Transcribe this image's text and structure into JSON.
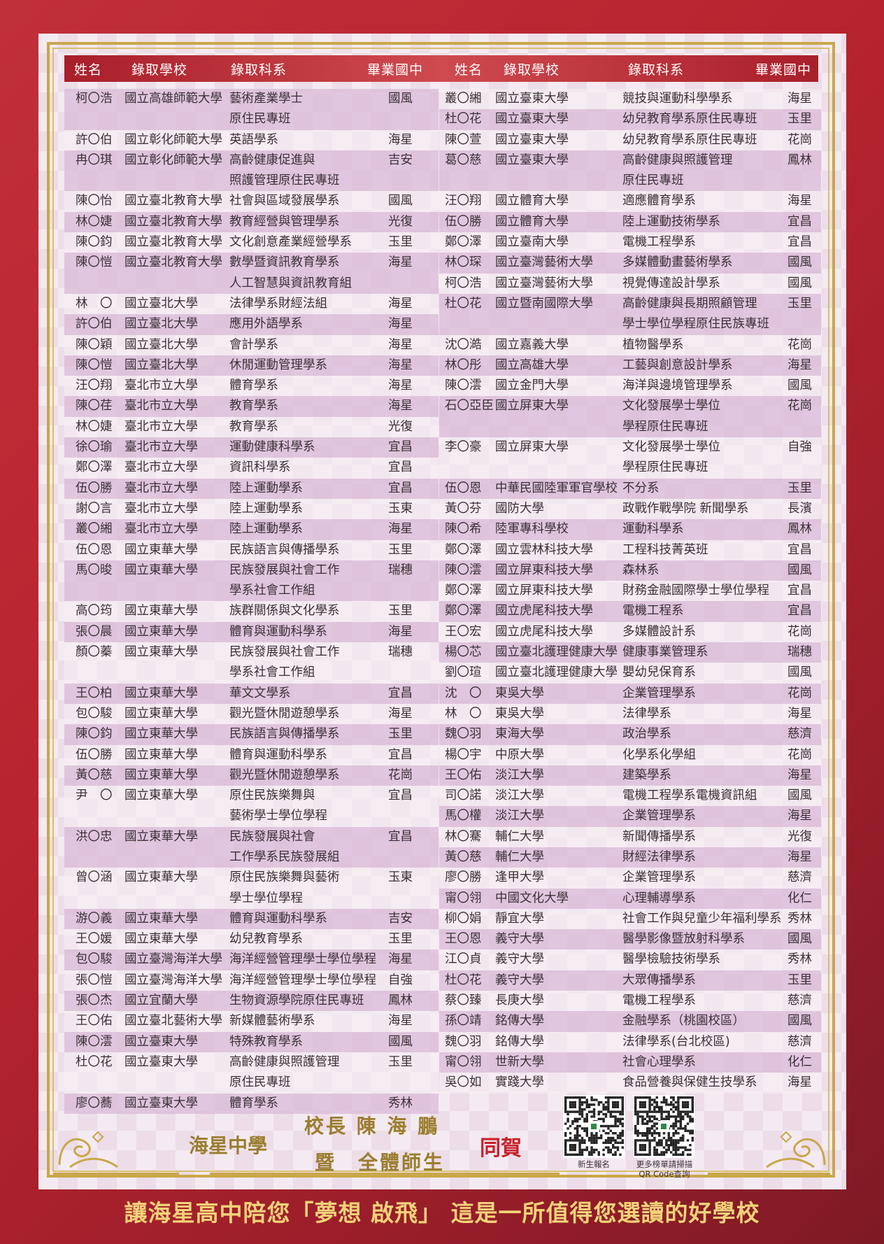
{
  "header": {
    "name": "姓名",
    "school": "錄取學校",
    "dept": "錄取科系",
    "junior_high": "畢業國中"
  },
  "left_rows": [
    {
      "name": "柯〇浩",
      "school": "國立高雄師範大學",
      "dept": [
        "藝術產業學士",
        "原住民專班"
      ],
      "jh": "國風"
    },
    {
      "name": "許〇伯",
      "school": "國立彰化師範大學",
      "dept": [
        "英語學系"
      ],
      "jh": "海星"
    },
    {
      "name": "冉〇琪",
      "school": "國立彰化師範大學",
      "dept": [
        "高齡健康促進與",
        "照護管理原住民專班"
      ],
      "jh": "吉安"
    },
    {
      "name": "陳〇怡",
      "school": "國立臺北教育大學",
      "dept": [
        "社會與區域發展學系"
      ],
      "jh": "國風"
    },
    {
      "name": "林〇婕",
      "school": "國立臺北教育大學",
      "dept": [
        "教育經營與管理學系"
      ],
      "jh": "光復"
    },
    {
      "name": "陳〇鈞",
      "school": "國立臺北教育大學",
      "dept": [
        "文化創意產業經營學系"
      ],
      "jh": "玉里"
    },
    {
      "name": "陳〇愷",
      "school": "國立臺北教育大學",
      "dept": [
        "數學暨資訊教育學系",
        "人工智慧與資訊教育組"
      ],
      "jh": "海星"
    },
    {
      "name": "林　〇",
      "school": "國立臺北大學",
      "dept": [
        "法律學系財經法組"
      ],
      "jh": "海星"
    },
    {
      "name": "許〇伯",
      "school": "國立臺北大學",
      "dept": [
        "應用外語學系"
      ],
      "jh": "海星"
    },
    {
      "name": "陳〇穎",
      "school": "國立臺北大學",
      "dept": [
        "會計學系"
      ],
      "jh": "海星"
    },
    {
      "name": "陳〇愷",
      "school": "國立臺北大學",
      "dept": [
        "休閒運動管理學系"
      ],
      "jh": "海星"
    },
    {
      "name": "汪〇翔",
      "school": "臺北市立大學",
      "dept": [
        "體育學系"
      ],
      "jh": "海星"
    },
    {
      "name": "陳〇荏",
      "school": "臺北市立大學",
      "dept": [
        "教育學系"
      ],
      "jh": "海星"
    },
    {
      "name": "林〇婕",
      "school": "臺北市立大學",
      "dept": [
        "教育學系"
      ],
      "jh": "光復"
    },
    {
      "name": "徐〇瑜",
      "school": "臺北市立大學",
      "dept": [
        "運動健康科學系"
      ],
      "jh": "宜昌"
    },
    {
      "name": "鄭〇澤",
      "school": "臺北市立大學",
      "dept": [
        "資訊科學系"
      ],
      "jh": "宜昌"
    },
    {
      "name": "伍〇勝",
      "school": "臺北市立大學",
      "dept": [
        "陸上運動學系"
      ],
      "jh": "宜昌"
    },
    {
      "name": "謝〇言",
      "school": "臺北市立大學",
      "dept": [
        "陸上運動學系"
      ],
      "jh": "玉東"
    },
    {
      "name": "叢〇緗",
      "school": "臺北市立大學",
      "dept": [
        "陸上運動學系"
      ],
      "jh": "海星"
    },
    {
      "name": "伍〇恩",
      "school": "國立東華大學",
      "dept": [
        "民族語言與傳播學系"
      ],
      "jh": "玉里"
    },
    {
      "name": "馬〇晙",
      "school": "國立東華大學",
      "dept": [
        "民族發展與社會工作",
        "學系社會工作組"
      ],
      "jh": "瑞穗"
    },
    {
      "name": "高〇筠",
      "school": "國立東華大學",
      "dept": [
        "族群關係與文化學系"
      ],
      "jh": "玉里"
    },
    {
      "name": "張〇晨",
      "school": "國立東華大學",
      "dept": [
        "體育與運動科學系"
      ],
      "jh": "海星"
    },
    {
      "name": "顏〇蓁",
      "school": "國立東華大學",
      "dept": [
        "民族發展與社會工作",
        "學系社會工作組"
      ],
      "jh": "瑞穗"
    },
    {
      "name": "王〇柏",
      "school": "國立東華大學",
      "dept": [
        "華文文學系"
      ],
      "jh": "宜昌"
    },
    {
      "name": "包〇駿",
      "school": "國立東華大學",
      "dept": [
        "觀光暨休閒遊憩學系"
      ],
      "jh": "海星"
    },
    {
      "name": "陳〇鈞",
      "school": "國立東華大學",
      "dept": [
        "民族語言與傳播學系"
      ],
      "jh": "玉里"
    },
    {
      "name": "伍〇勝",
      "school": "國立東華大學",
      "dept": [
        "體育與運動科學系"
      ],
      "jh": "宜昌"
    },
    {
      "name": "黃〇慈",
      "school": "國立東華大學",
      "dept": [
        "觀光暨休閒遊憩學系"
      ],
      "jh": "花崗"
    },
    {
      "name": "尹　〇",
      "school": "國立東華大學",
      "dept": [
        "原住民族樂舞與",
        "藝術學士學位學程"
      ],
      "jh": "宜昌"
    },
    {
      "name": "洪〇忠",
      "school": "國立東華大學",
      "dept": [
        "民族發展與社會",
        "工作學系民族發展組"
      ],
      "jh": "宜昌"
    },
    {
      "name": "曾〇涵",
      "school": "國立東華大學",
      "dept": [
        "原住民族樂舞與藝術",
        "學士學位學程"
      ],
      "jh": "玉東"
    },
    {
      "name": "游〇義",
      "school": "國立東華大學",
      "dept": [
        "體育與運動科學系"
      ],
      "jh": "吉安"
    },
    {
      "name": "王〇媛",
      "school": "國立東華大學",
      "dept": [
        "幼兒教育學系"
      ],
      "jh": "玉里"
    },
    {
      "name": "包〇駿",
      "school": "國立臺灣海洋大學",
      "dept": [
        "海洋經營管理學士學位學程"
      ],
      "jh": "海星"
    },
    {
      "name": "張〇愷",
      "school": "國立臺灣海洋大學",
      "dept": [
        "海洋經營管理學士學位學程"
      ],
      "jh": "自強"
    },
    {
      "name": "張〇杰",
      "school": "國立宜蘭大學",
      "dept": [
        "生物資源學院原住民專班"
      ],
      "jh": "鳳林"
    },
    {
      "name": "王〇佑",
      "school": "國立臺北藝術大學",
      "dept": [
        "新媒體藝術學系"
      ],
      "jh": "海星"
    },
    {
      "name": "陳〇澐",
      "school": "國立臺東大學",
      "dept": [
        "特殊教育學系"
      ],
      "jh": "國風"
    },
    {
      "name": "杜〇花",
      "school": "國立臺東大學",
      "dept": [
        "高齡健康與照護管理",
        "原住民專班"
      ],
      "jh": "玉里"
    },
    {
      "name": "廖〇蕎",
      "school": "國立臺東大學",
      "dept": [
        "體育學系"
      ],
      "jh": "秀林"
    }
  ],
  "right_rows": [
    {
      "name": "叢〇緗",
      "school": "國立臺東大學",
      "dept": [
        "競技與運動科學學系"
      ],
      "jh": "海星"
    },
    {
      "name": "杜〇花",
      "school": "國立臺東大學",
      "dept": [
        "幼兒教育學系原住民專班"
      ],
      "jh": "玉里"
    },
    {
      "name": "陳〇萱",
      "school": "國立臺東大學",
      "dept": [
        "幼兒教育學系原住民專班"
      ],
      "jh": "花崗"
    },
    {
      "name": "葛〇慈",
      "school": "國立臺東大學",
      "dept": [
        "高齡健康與照護管理",
        "原住民專班"
      ],
      "jh": "鳳林"
    },
    {
      "name": "汪〇翔",
      "school": "國立體育大學",
      "dept": [
        "適應體育學系"
      ],
      "jh": "海星"
    },
    {
      "name": "伍〇勝",
      "school": "國立體育大學",
      "dept": [
        "陸上運動技術學系"
      ],
      "jh": "宜昌"
    },
    {
      "name": "鄭〇澤",
      "school": "國立臺南大學",
      "dept": [
        "電機工程學系"
      ],
      "jh": "宜昌"
    },
    {
      "name": "林〇琛",
      "school": "國立臺灣藝術大學",
      "dept": [
        "多媒體動畫藝術學系"
      ],
      "jh": "國風"
    },
    {
      "name": "柯〇浩",
      "school": "國立臺灣藝術大學",
      "dept": [
        "視覺傳達設計學系"
      ],
      "jh": "國風"
    },
    {
      "name": "杜〇花",
      "school": "國立暨南國際大學",
      "dept": [
        "高齡健康與長期照顧管理",
        "學士學位學程原住民族專班"
      ],
      "jh": "玉里"
    },
    {
      "name": "沈〇澔",
      "school": "國立嘉義大學",
      "dept": [
        "植物醫學系"
      ],
      "jh": "花崗"
    },
    {
      "name": "林〇彤",
      "school": "國立高雄大學",
      "dept": [
        "工藝與創意設計學系"
      ],
      "jh": "海星"
    },
    {
      "name": "陳〇澐",
      "school": "國立金門大學",
      "dept": [
        "海洋與邊境管理學系"
      ],
      "jh": "國風"
    },
    {
      "name": "石〇亞臣",
      "school": "國立屏東大學",
      "dept": [
        "文化發展學士學位",
        "學程原住民專班"
      ],
      "jh": "花崗"
    },
    {
      "name": "李〇豪",
      "school": "國立屏東大學",
      "dept": [
        "文化發展學士學位",
        "學程原住民專班"
      ],
      "jh": "自強"
    },
    {
      "name": "伍〇恩",
      "school": "中華民國陸軍軍官學校",
      "dept": [
        "不分系"
      ],
      "jh": "玉里"
    },
    {
      "name": "黃〇芬",
      "school": "國防大學",
      "dept": [
        "政戰作戰學院 新聞學系"
      ],
      "jh": "長濱"
    },
    {
      "name": "陳〇希",
      "school": "陸軍專科學校",
      "dept": [
        "運動科學系"
      ],
      "jh": "鳳林"
    },
    {
      "name": "鄭〇澤",
      "school": "國立雲林科技大學",
      "dept": [
        "工程科技菁英班"
      ],
      "jh": "宜昌"
    },
    {
      "name": "陳〇澐",
      "school": "國立屏東科技大學",
      "dept": [
        "森林系"
      ],
      "jh": "國風"
    },
    {
      "name": "鄭〇澤",
      "school": "國立屏東科技大學",
      "dept": [
        "財務金融國際學士學位學程"
      ],
      "jh": "宜昌"
    },
    {
      "name": "鄭〇澤",
      "school": "國立虎尾科技大學",
      "dept": [
        "電機工程系"
      ],
      "jh": "宜昌"
    },
    {
      "name": "王〇宏",
      "school": "國立虎尾科技大學",
      "dept": [
        "多媒體設計系"
      ],
      "jh": "花崗"
    },
    {
      "name": "楊〇芯",
      "school": "國立臺北護理健康大學",
      "dept": [
        "健康事業管理系"
      ],
      "jh": "瑞穗"
    },
    {
      "name": "劉〇瑄",
      "school": "國立臺北護理健康大學",
      "dept": [
        "嬰幼兒保育系"
      ],
      "jh": "國風"
    },
    {
      "name": "沈　〇",
      "school": "東吳大學",
      "dept": [
        "企業管理學系"
      ],
      "jh": "花崗"
    },
    {
      "name": "林　〇",
      "school": "東吳大學",
      "dept": [
        "法律學系"
      ],
      "jh": "海星"
    },
    {
      "name": "魏〇羽",
      "school": "東海大學",
      "dept": [
        "政治學系"
      ],
      "jh": "慈濟"
    },
    {
      "name": "楊〇宇",
      "school": "中原大學",
      "dept": [
        "化學系化學組"
      ],
      "jh": "花崗"
    },
    {
      "name": "王〇佑",
      "school": "淡江大學",
      "dept": [
        "建築學系"
      ],
      "jh": "海星"
    },
    {
      "name": "司〇諾",
      "school": "淡江大學",
      "dept": [
        "電機工程學系電機資訊組"
      ],
      "jh": "國風"
    },
    {
      "name": "馬〇權",
      "school": "淡江大學",
      "dept": [
        "企業管理學系"
      ],
      "jh": "海星"
    },
    {
      "name": "林〇騫",
      "school": "輔仁大學",
      "dept": [
        "新聞傳播學系"
      ],
      "jh": "光復"
    },
    {
      "name": "黃〇慈",
      "school": "輔仁大學",
      "dept": [
        "財經法律學系"
      ],
      "jh": "海星"
    },
    {
      "name": "廖〇勝",
      "school": "逢甲大學",
      "dept": [
        "企業管理學系"
      ],
      "jh": "慈濟"
    },
    {
      "name": "甯〇翎",
      "school": "中國文化大學",
      "dept": [
        "心理輔導學系"
      ],
      "jh": "化仁"
    },
    {
      "name": "柳〇娟",
      "school": "靜宜大學",
      "dept": [
        "社會工作與兒童少年福利學系"
      ],
      "jh": "秀林"
    },
    {
      "name": "王〇恩",
      "school": "義守大學",
      "dept": [
        "醫學影像暨放射科學系"
      ],
      "jh": "國風"
    },
    {
      "name": "江〇貞",
      "school": "義守大學",
      "dept": [
        "醫學檢驗技術學系"
      ],
      "jh": "秀林"
    },
    {
      "name": "杜〇花",
      "school": "義守大學",
      "dept": [
        "大眾傳播學系"
      ],
      "jh": "玉里"
    },
    {
      "name": "蔡〇臻",
      "school": "長庚大學",
      "dept": [
        "電機工程學系"
      ],
      "jh": "慈濟"
    },
    {
      "name": "孫〇靖",
      "school": "銘傳大學",
      "dept": [
        "金融學系（桃園校區）"
      ],
      "jh": "國風"
    },
    {
      "name": "魏〇羽",
      "school": "銘傳大學",
      "dept": [
        "法律學系(台北校區)"
      ],
      "jh": "慈濟"
    },
    {
      "name": "甯〇翎",
      "school": "世新大學",
      "dept": [
        "社會心理學系"
      ],
      "jh": "化仁"
    },
    {
      "name": "吳〇如",
      "school": "實踐大學",
      "dept": [
        "食品營養與保健生技學系"
      ],
      "jh": "海星"
    }
  ],
  "footer": {
    "school_name": "海星中學",
    "principal": "校長 陳 海 鵬",
    "staff": "暨　全體師生",
    "congrats": "同賀",
    "qr1_label": "新生報名",
    "qr2_label_1": "更多榜單請掃描",
    "qr2_label_2": "QR Code查詢",
    "qr1_icon": "qr-code-icon",
    "qr2_icon": "qr-code-icon"
  },
  "banner": "讓海星高中陪您「夢想 啟飛」 這是一所值得您選讀的好學校",
  "colors": {
    "header_red": "#b8242f",
    "gold": "#c9a74a",
    "row_shade": "#dab9d7",
    "congrats_red": "#c8202a"
  }
}
